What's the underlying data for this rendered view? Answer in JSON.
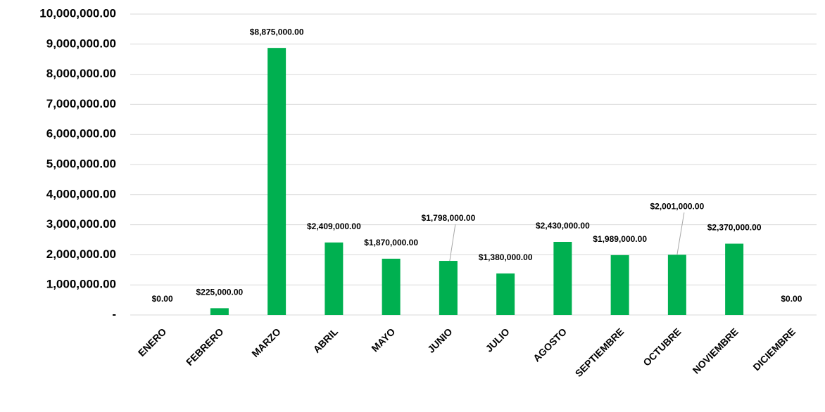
{
  "chart_data": {
    "type": "bar",
    "categories": [
      "ENERO",
      "FEBRERO",
      "MARZO",
      "ABRIL",
      "MAYO",
      "JUNIO",
      "JULIO",
      "AGOSTO",
      "SEPTIEMBRE",
      "OCTUBRE",
      "NOVIEMBRE",
      "DICIEMBRE"
    ],
    "values": [
      0,
      225000,
      8875000,
      2409000,
      1870000,
      1798000,
      1380000,
      2430000,
      1989000,
      2001000,
      2370000,
      0
    ],
    "value_labels": [
      "$0.00",
      "$225,000.00",
      "$8,875,000.00",
      "$2,409,000.00",
      "$1,870,000.00",
      "$1,798,000.00",
      "$1,380,000.00",
      "$2,430,000.00",
      "$1,989,000.00",
      "$2,001,000.00",
      "$2,370,000.00",
      "$0.00"
    ],
    "color": "#00b050",
    "ylim": [
      0,
      10000000
    ],
    "yticks": [
      {
        "value": 0,
        "label": "-"
      },
      {
        "value": 1000000,
        "label": "1,000,000.00"
      },
      {
        "value": 2000000,
        "label": "2,000,000.00"
      },
      {
        "value": 3000000,
        "label": "3,000,000.00"
      },
      {
        "value": 4000000,
        "label": "4,000,000.00"
      },
      {
        "value": 5000000,
        "label": "5,000,000.00"
      },
      {
        "value": 6000000,
        "label": "6,000,000.00"
      },
      {
        "value": 7000000,
        "label": "7,000,000.00"
      },
      {
        "value": 8000000,
        "label": "8,000,000.00"
      },
      {
        "value": 9000000,
        "label": "9,000,000.00"
      },
      {
        "value": 10000000,
        "label": "10,000,000.00"
      }
    ],
    "grid": true
  }
}
